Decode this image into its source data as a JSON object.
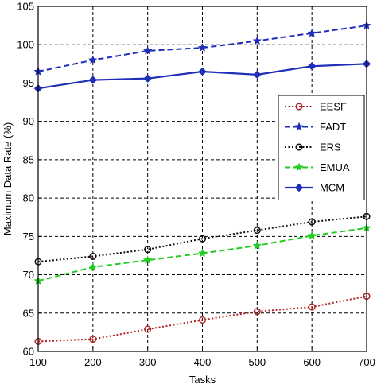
{
  "chart_data": {
    "type": "line",
    "title": "",
    "xlabel": "Tasks",
    "ylabel": "Maximum Data Rate (%)",
    "x": [
      100,
      200,
      300,
      400,
      500,
      600,
      700
    ],
    "xlim": [
      100,
      700
    ],
    "ylim": [
      60,
      105
    ],
    "xticks": [
      "100",
      "200",
      "300",
      "400",
      "500",
      "600",
      "700"
    ],
    "yticks": [
      "60",
      "65",
      "70",
      "75",
      "80",
      "85",
      "90",
      "95",
      "100",
      "105"
    ],
    "grid": true,
    "legend_position": "right",
    "series": [
      {
        "name": "EESF",
        "color": "#b22222",
        "line_style": "dotted",
        "marker": "open-circle",
        "values": [
          61.3,
          61.6,
          62.9,
          64.1,
          65.2,
          65.8,
          67.2
        ]
      },
      {
        "name": "FADT",
        "color": "#1f2fb8",
        "line_style": "dashed",
        "marker": "filled-star",
        "values": [
          96.5,
          98.0,
          99.2,
          99.6,
          100.5,
          101.5,
          102.5
        ]
      },
      {
        "name": "ERS",
        "color": "#111111",
        "line_style": "dotted",
        "marker": "open-circle",
        "values": [
          71.7,
          72.4,
          73.3,
          74.7,
          75.8,
          76.9,
          77.6
        ]
      },
      {
        "name": "EMUA",
        "color": "#22cc22",
        "line_style": "dashed",
        "marker": "filled-star",
        "values": [
          69.2,
          71.0,
          71.9,
          72.8,
          73.8,
          75.1,
          76.1
        ]
      },
      {
        "name": "MCM",
        "color": "#1f2fb8",
        "line_style": "solid",
        "marker": "filled-diamond",
        "values": [
          94.3,
          95.4,
          95.6,
          96.5,
          96.1,
          97.2,
          97.5
        ]
      }
    ]
  }
}
